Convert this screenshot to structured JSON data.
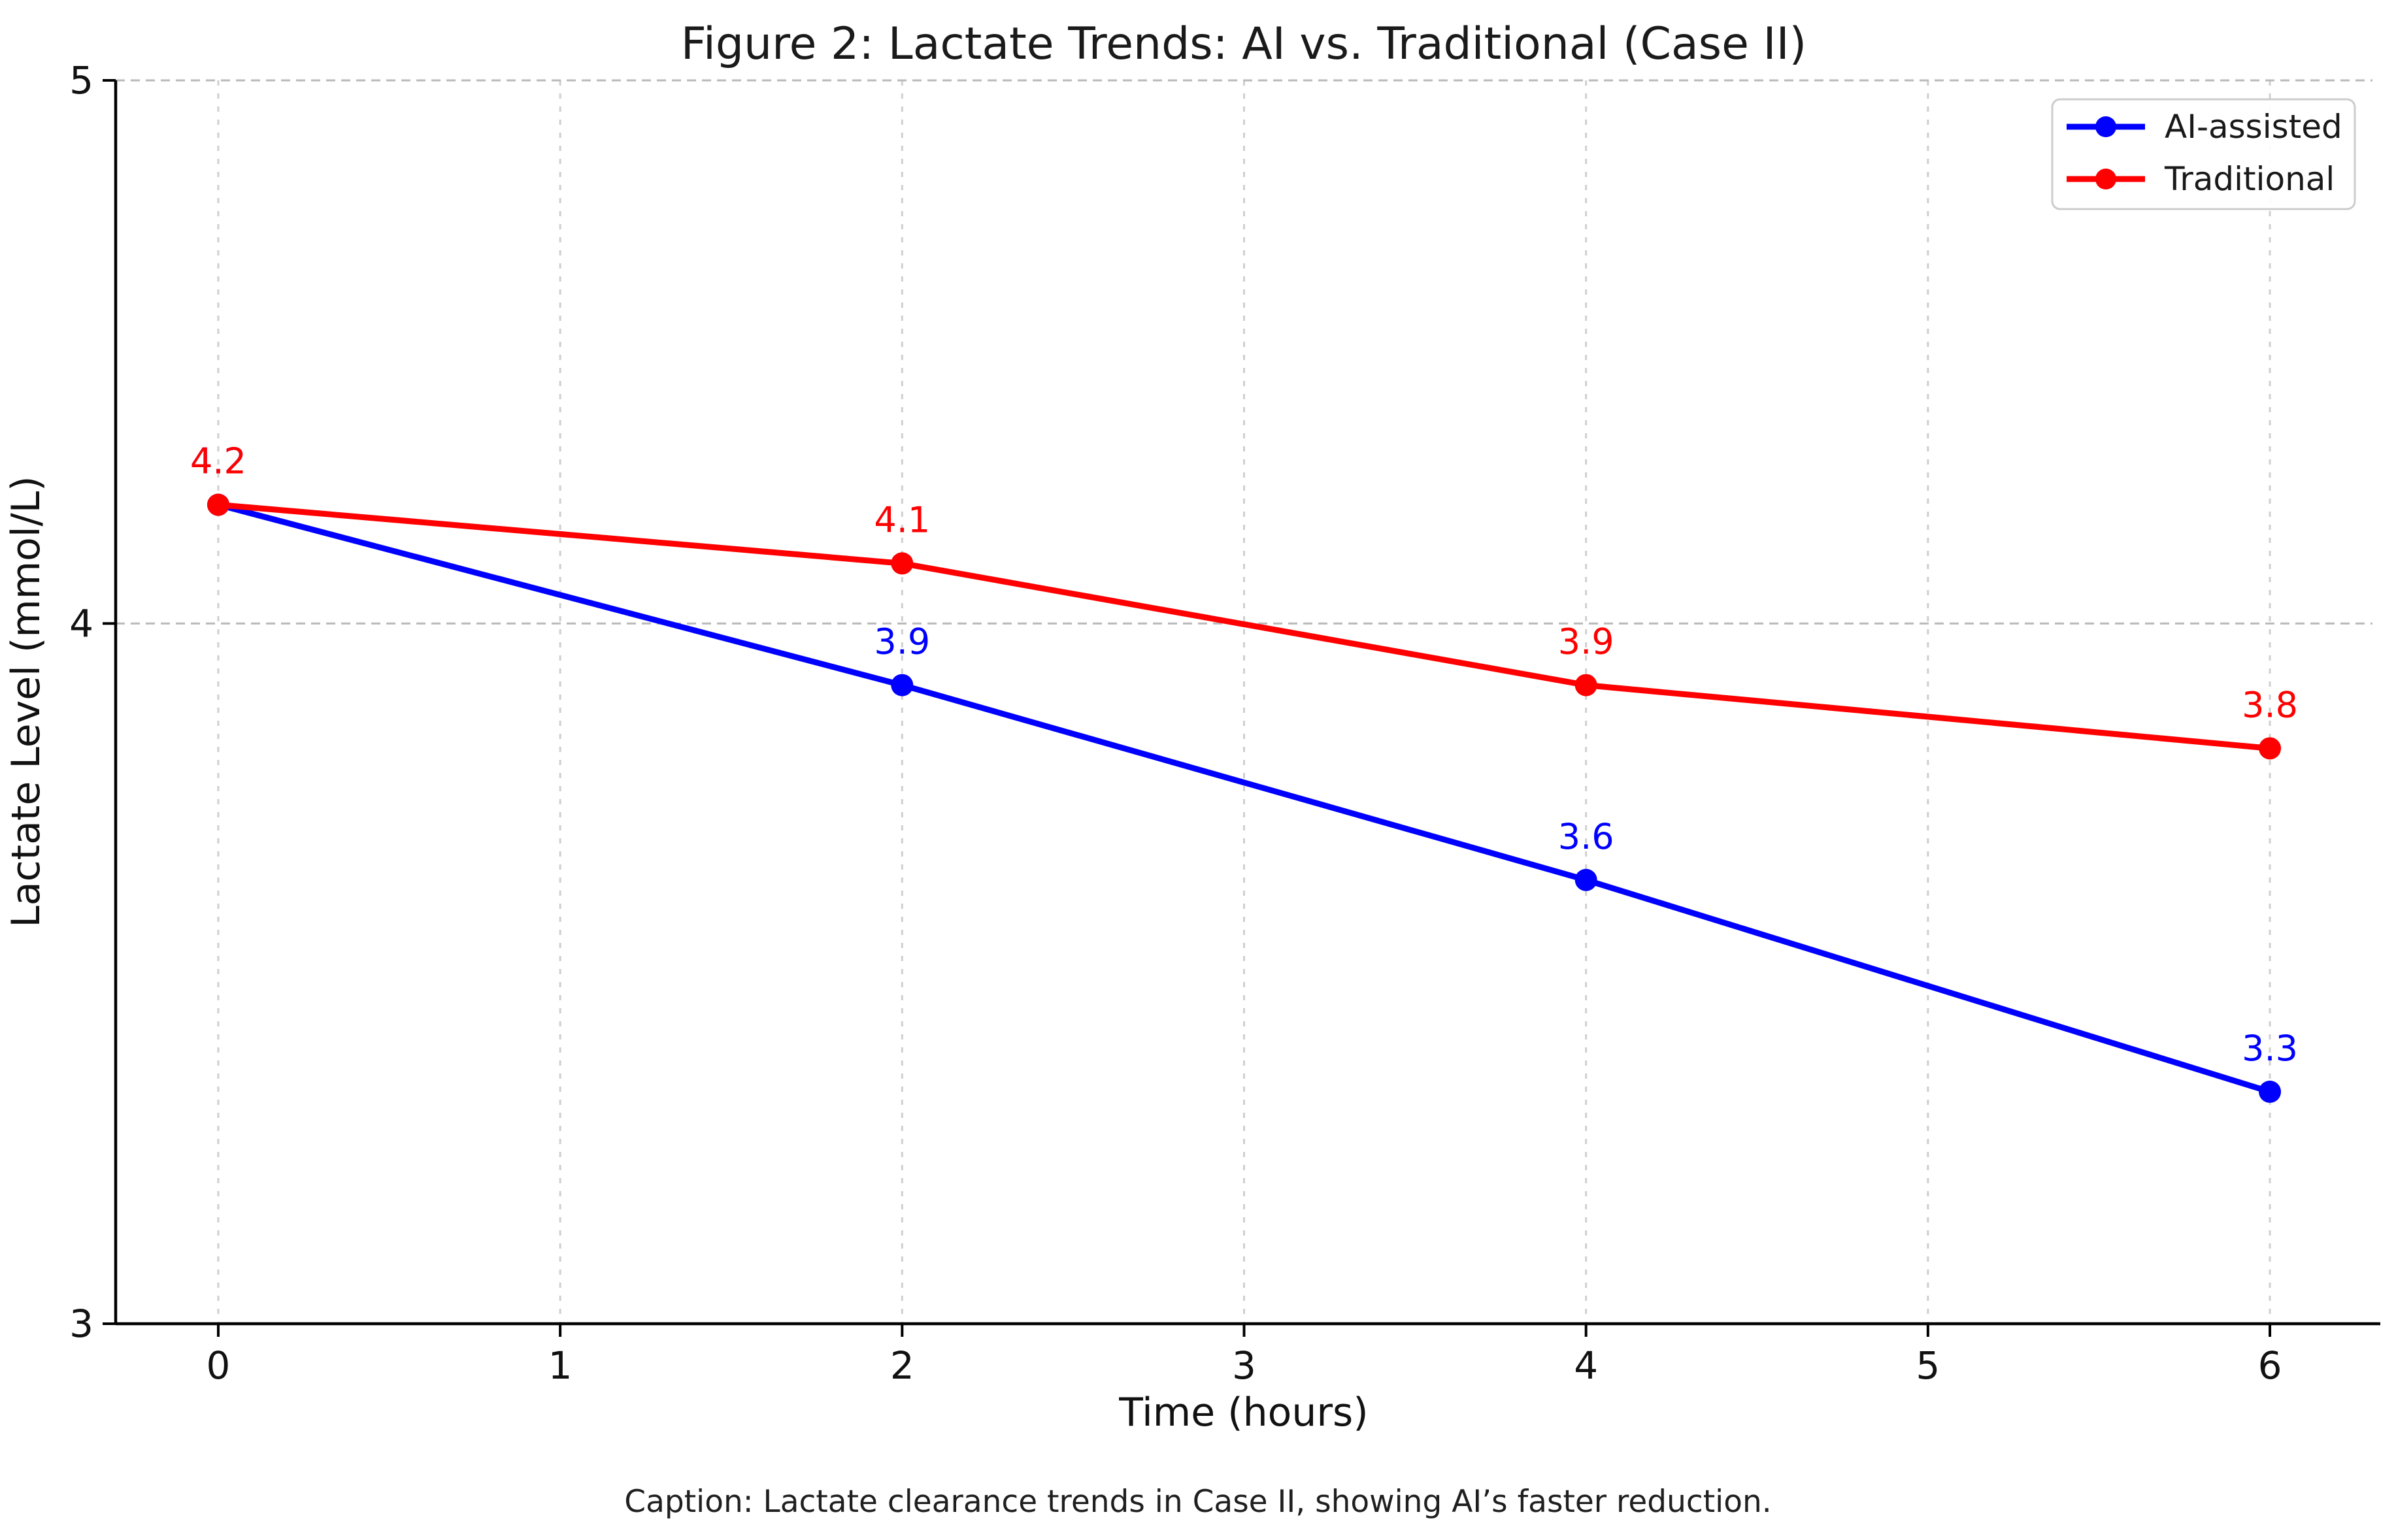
{
  "figure": {
    "caption": "Caption: Lactate clearance trends in Case II, showing AI’s faster reduction."
  },
  "chart_data": {
    "type": "line",
    "title": "Figure 2: Lactate Trends: AI vs. Traditional (Case II)",
    "xlabel": "Time (hours)",
    "ylabel": "Lactate Level (mmol/L)",
    "x": [
      0,
      2,
      4,
      6
    ],
    "series": [
      {
        "name": "AI-assisted",
        "color": "#0000ff",
        "values": [
          4.2,
          3.9,
          3.6,
          3.3
        ]
      },
      {
        "name": "Traditional",
        "color": "#ff0000",
        "values": [
          4.2,
          4.1,
          3.9,
          3.8
        ]
      }
    ],
    "point_labels": {
      "AI-assisted": [
        "4.2",
        "3.9",
        "3.6",
        "3.3"
      ],
      "Traditional": [
        "4.2",
        "4.1",
        "3.9",
        "3.8"
      ]
    },
    "xticks": [
      0,
      1,
      2,
      3,
      4,
      5,
      6
    ],
    "yticks": [
      3,
      4,
      5
    ],
    "xlim": [
      -0.3,
      6.3
    ],
    "ylim": [
      3,
      5
    ],
    "yscale": "log",
    "grid": "dashed",
    "legend_position": "upper right",
    "colors": {
      "axis": "#000000",
      "grid_horizontal": "#b9b9b9",
      "grid_vertical": "#cfcfcf",
      "legend_border": "#cccccc",
      "legend_background": "#ffffff",
      "text": "#1a1a1a"
    }
  }
}
